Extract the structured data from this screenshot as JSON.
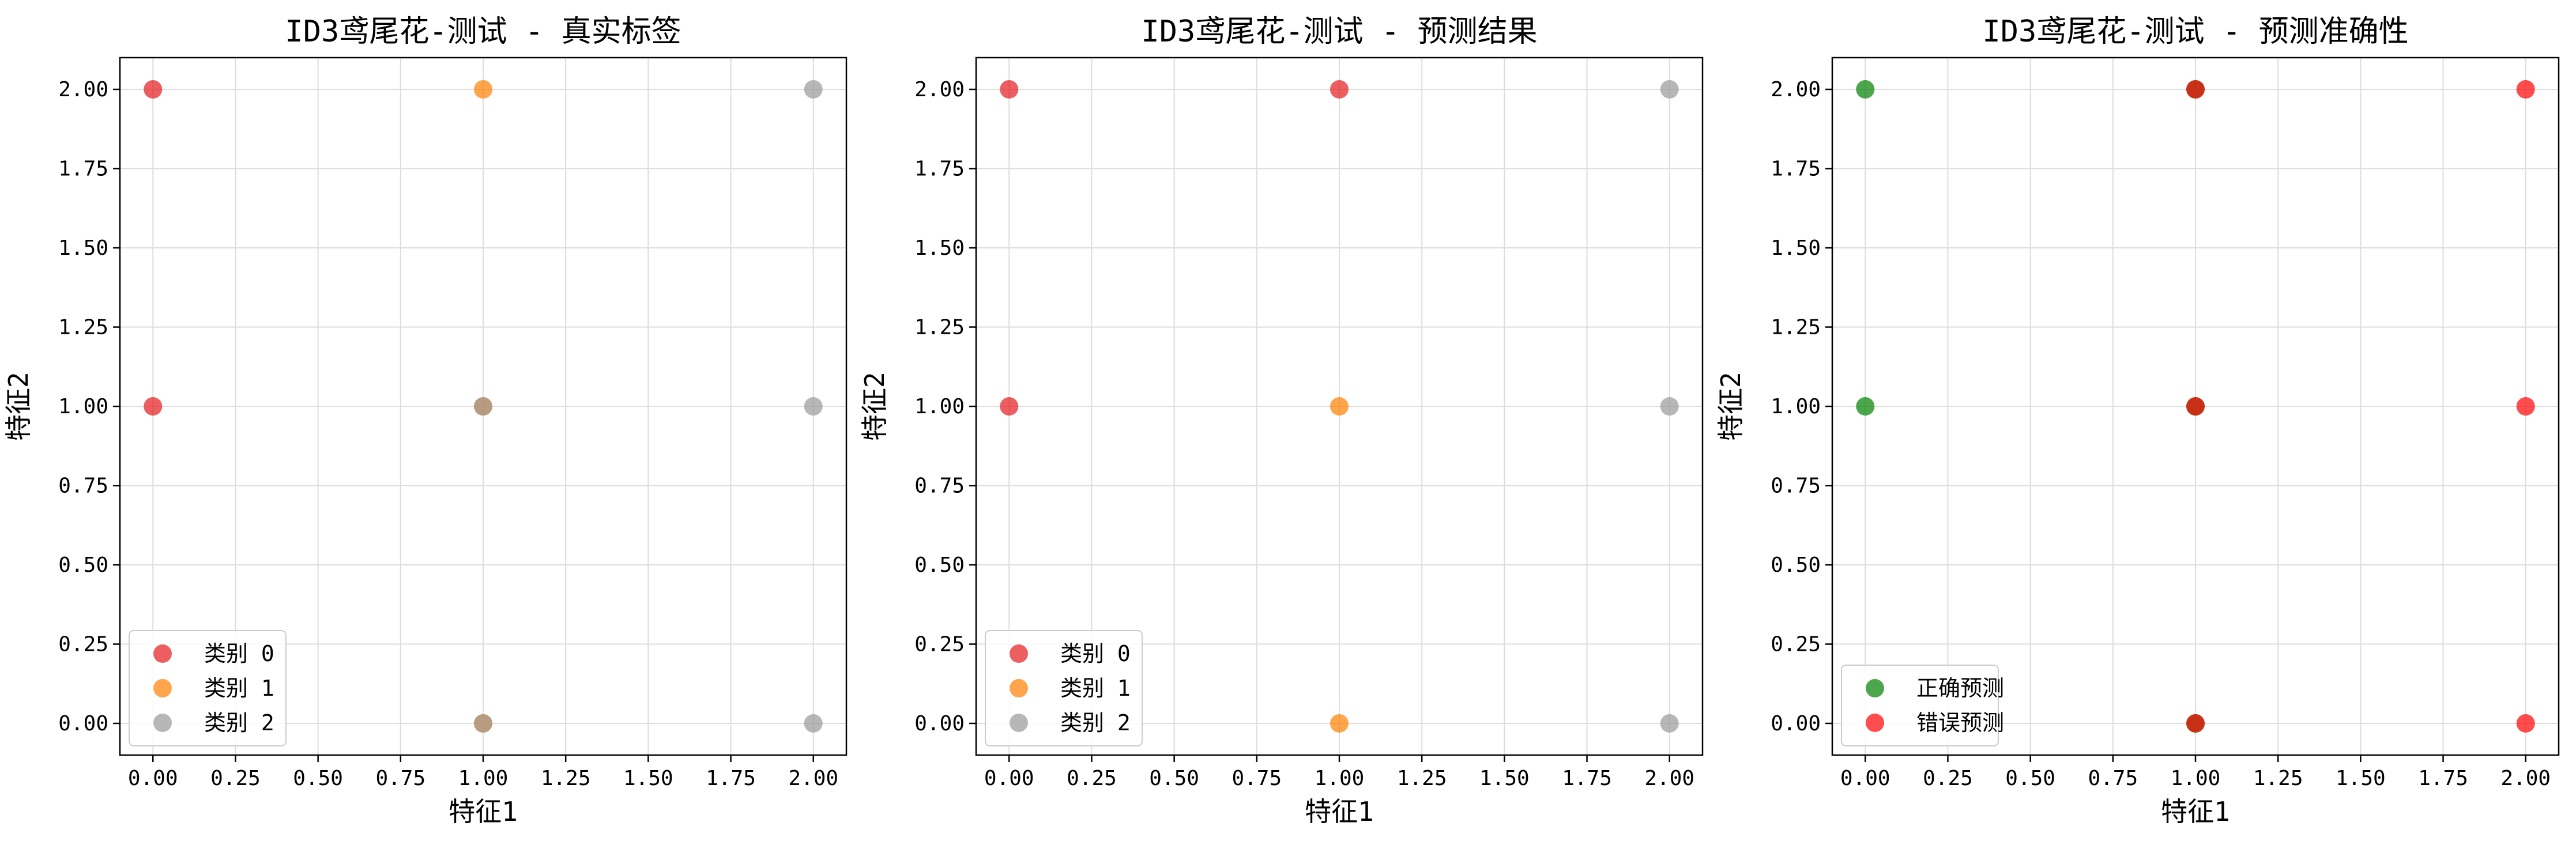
{
  "chart_data": [
    {
      "type": "scatter",
      "title": "ID3鸢尾花-测试 - 真实标签",
      "xlabel": "特征1",
      "ylabel": "特征2",
      "xlim": [
        -0.1,
        2.1
      ],
      "ylim": [
        -0.1,
        2.1
      ],
      "xticks": [
        "0.00",
        "0.25",
        "0.50",
        "0.75",
        "1.00",
        "1.25",
        "1.50",
        "1.75",
        "2.00"
      ],
      "yticks": [
        "0.00",
        "0.25",
        "0.50",
        "0.75",
        "1.00",
        "1.25",
        "1.50",
        "1.75",
        "2.00"
      ],
      "grid": true,
      "legend_position": "lower-left",
      "series": [
        {
          "name": "类别 0",
          "color": "#e41a1c",
          "points": [
            [
              0,
              2
            ],
            [
              0,
              1
            ]
          ]
        },
        {
          "name": "类别 1",
          "color": "#ff7f00",
          "points": [
            [
              1,
              2
            ],
            [
              1,
              1
            ],
            [
              1,
              0
            ]
          ]
        },
        {
          "name": "类别 2",
          "color": "#999999",
          "points": [
            [
              2,
              2
            ],
            [
              2,
              1
            ],
            [
              2,
              0
            ],
            [
              1,
              1
            ],
            [
              1,
              0
            ]
          ]
        }
      ]
    },
    {
      "type": "scatter",
      "title": "ID3鸢尾花-测试 - 预测结果",
      "xlabel": "特征1",
      "ylabel": "特征2",
      "xlim": [
        -0.1,
        2.1
      ],
      "ylim": [
        -0.1,
        2.1
      ],
      "xticks": [
        "0.00",
        "0.25",
        "0.50",
        "0.75",
        "1.00",
        "1.25",
        "1.50",
        "1.75",
        "2.00"
      ],
      "yticks": [
        "0.00",
        "0.25",
        "0.50",
        "0.75",
        "1.00",
        "1.25",
        "1.50",
        "1.75",
        "2.00"
      ],
      "grid": true,
      "legend_position": "lower-left",
      "series": [
        {
          "name": "类别 0",
          "color": "#e41a1c",
          "points": [
            [
              0,
              2
            ],
            [
              0,
              1
            ],
            [
              1,
              2
            ]
          ]
        },
        {
          "name": "类别 1",
          "color": "#ff7f00",
          "points": [
            [
              1,
              1
            ],
            [
              1,
              0
            ]
          ]
        },
        {
          "name": "类别 2",
          "color": "#999999",
          "points": [
            [
              2,
              2
            ],
            [
              2,
              1
            ],
            [
              2,
              0
            ]
          ]
        }
      ]
    },
    {
      "type": "scatter",
      "title": "ID3鸢尾花-测试 - 预测准确性",
      "xlabel": "特征1",
      "ylabel": "特征2",
      "xlim": [
        -0.1,
        2.1
      ],
      "ylim": [
        -0.1,
        2.1
      ],
      "xticks": [
        "0.00",
        "0.25",
        "0.50",
        "0.75",
        "1.00",
        "1.25",
        "1.50",
        "1.75",
        "2.00"
      ],
      "yticks": [
        "0.00",
        "0.25",
        "0.50",
        "0.75",
        "1.00",
        "1.25",
        "1.50",
        "1.75",
        "2.00"
      ],
      "grid": true,
      "legend_position": "lower-left",
      "series": [
        {
          "name": "正确预测",
          "color": "#008000",
          "points": [
            [
              0,
              2
            ],
            [
              0,
              1
            ],
            [
              1,
              2
            ],
            [
              1,
              1
            ],
            [
              1,
              0
            ]
          ]
        },
        {
          "name": "错误预测",
          "color": "#ff0000",
          "points": [
            [
              1,
              2
            ],
            [
              1,
              1
            ],
            [
              1,
              0
            ],
            [
              2,
              2
            ],
            [
              2,
              1
            ],
            [
              2,
              0
            ]
          ]
        }
      ]
    }
  ]
}
